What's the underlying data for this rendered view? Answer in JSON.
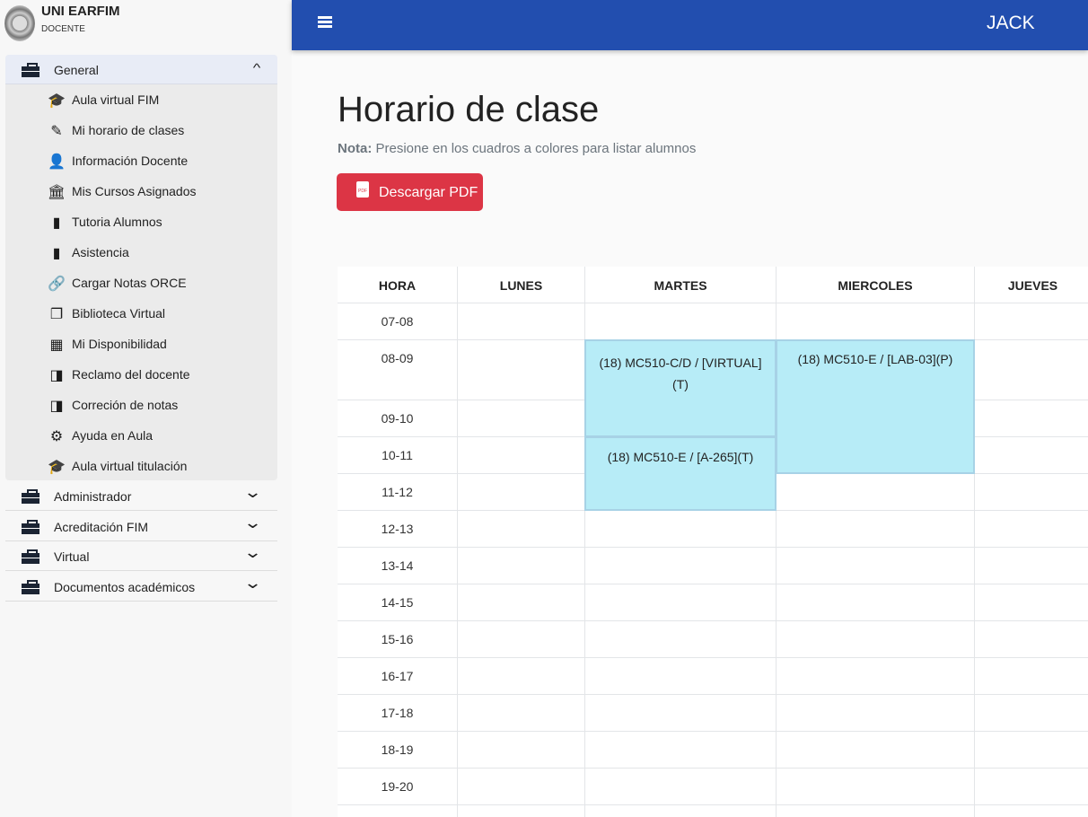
{
  "sidebar": {
    "brand": "UNI EARFIM",
    "role": "DOCENTE",
    "general": {
      "label": "General",
      "items": [
        {
          "label": "Aula virtual FIM",
          "icon": "graduation-cap-icon",
          "glyph": "🎓"
        },
        {
          "label": "Mi horario de clases",
          "icon": "pencil-icon",
          "glyph": "✎"
        },
        {
          "label": "Información Docente",
          "icon": "user-card-icon",
          "glyph": "👤"
        },
        {
          "label": "Mis Cursos Asignados",
          "icon": "institution-icon",
          "glyph": "🏛"
        },
        {
          "label": "Tutoria Alumnos",
          "icon": "book-icon",
          "glyph": "▮"
        },
        {
          "label": "Asistencia",
          "icon": "book-icon",
          "glyph": "▮"
        },
        {
          "label": "Cargar Notas ORCE",
          "icon": "link-icon",
          "glyph": "🔗"
        },
        {
          "label": "Biblioteca Virtual",
          "icon": "library-icon",
          "glyph": "❐"
        },
        {
          "label": "Mi Disponibilidad",
          "icon": "dashboard-icon",
          "glyph": "▦"
        },
        {
          "label": "Reclamo del docente",
          "icon": "chrome-reader-icon",
          "glyph": "◨"
        },
        {
          "label": "Correción de notas",
          "icon": "chrome-reader-icon",
          "glyph": "◨"
        },
        {
          "label": "Ayuda en Aula",
          "icon": "gear-icon",
          "glyph": "⚙"
        },
        {
          "label": "Aula virtual titulación",
          "icon": "graduation-cap-icon",
          "glyph": "🎓"
        }
      ]
    },
    "sections": [
      {
        "label": "Administrador"
      },
      {
        "label": "Acreditación FIM"
      },
      {
        "label": "Virtual"
      },
      {
        "label": "Documentos académicos"
      }
    ]
  },
  "topbar": {
    "user": "JACK"
  },
  "main": {
    "title": "Horario de clase",
    "nota_label": "Nota:",
    "nota_text": " Presione en los cuadros a colores para listar alumnos",
    "pdf_button": "Descargar PDF",
    "pdf_icon_text": "PDF"
  },
  "schedule": {
    "headers": [
      "HORA",
      "LUNES",
      "MARTES",
      "MIERCOLES",
      "JUEVES"
    ],
    "hours": [
      "07-08",
      "08-09",
      "09-10",
      "10-11",
      "11-12",
      "12-13",
      "13-14",
      "14-15",
      "15-16",
      "16-17",
      "17-18",
      "18-19",
      "19-20",
      ""
    ],
    "blocks": [
      {
        "day": "MARTES",
        "start": "08-09",
        "end": "09-10",
        "text": "(18) MC510-C/D / [VIRTUAL](T)"
      },
      {
        "day": "MARTES",
        "start": "10-11",
        "end": "11-12",
        "text": "(18) MC510-E / [A-265](T)"
      },
      {
        "day": "MIERCOLES",
        "start": "08-09",
        "end": "10-11",
        "text": "(18) MC510-E / [LAB-03](P)"
      }
    ]
  }
}
